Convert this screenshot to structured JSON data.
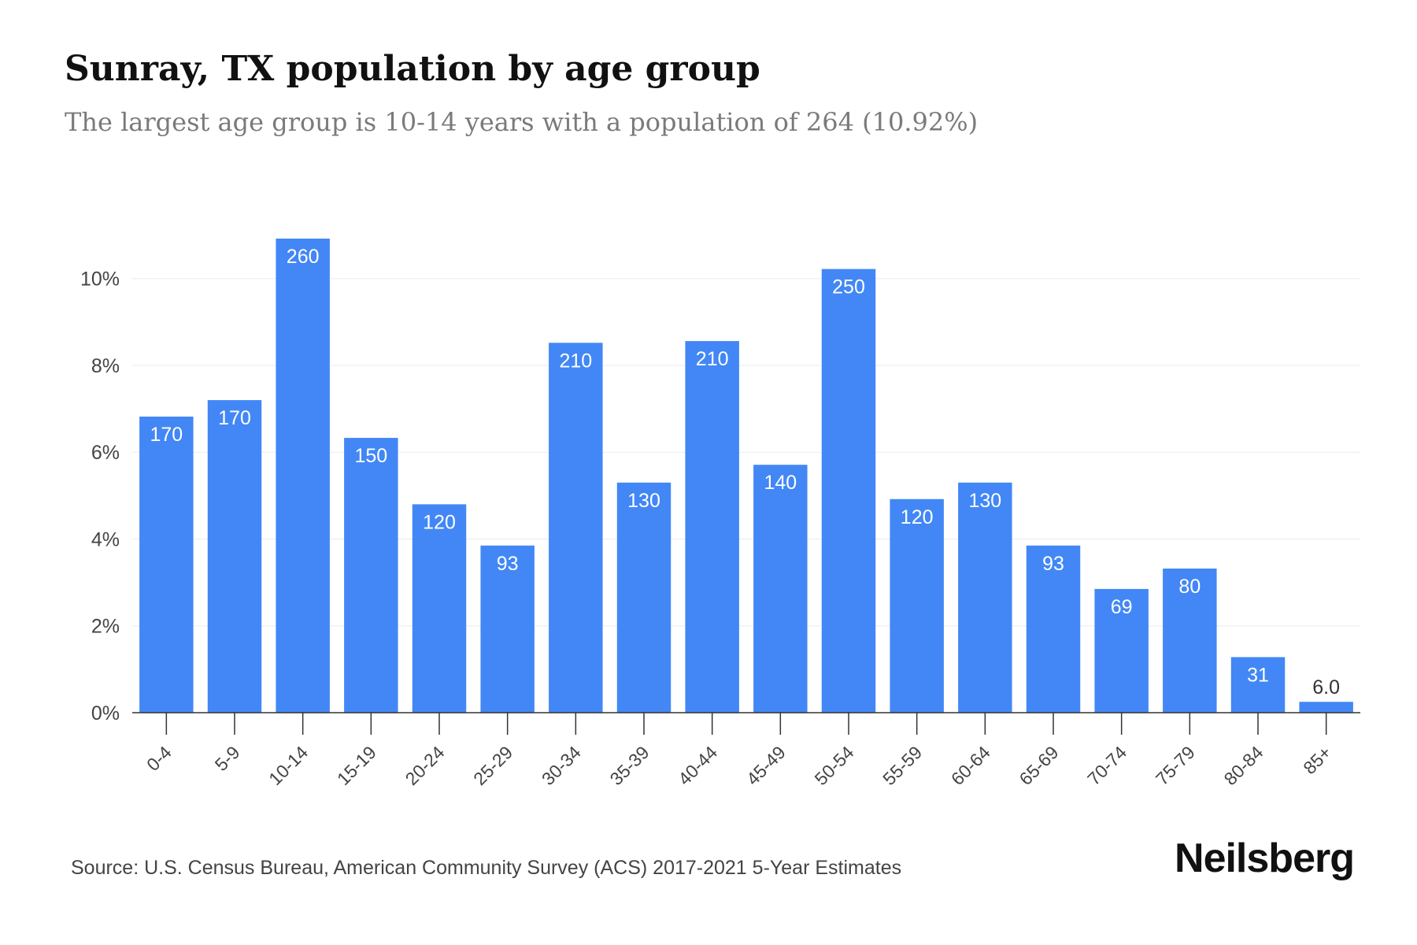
{
  "chart_data": {
    "type": "bar",
    "title": "Sunray, TX population by age group",
    "subtitle": "The largest age group is 10-14 years with a population of 264 (10.92%)",
    "categories": [
      "0-4",
      "5-9",
      "10-14",
      "15-19",
      "20-24",
      "25-29",
      "30-34",
      "35-39",
      "40-44",
      "45-49",
      "50-54",
      "55-59",
      "60-64",
      "65-69",
      "70-74",
      "75-79",
      "80-84",
      "85+"
    ],
    "values": [
      6.82,
      7.2,
      10.92,
      6.33,
      4.8,
      3.85,
      8.52,
      5.3,
      8.56,
      5.71,
      10.22,
      4.92,
      5.3,
      3.85,
      2.85,
      3.32,
      1.28,
      0.25
    ],
    "data_labels": [
      "170",
      "170",
      "260",
      "150",
      "120",
      "93",
      "210",
      "130",
      "210",
      "140",
      "250",
      "120",
      "130",
      "93",
      "69",
      "80",
      "31",
      "6.0"
    ],
    "y_ticks": [
      0,
      2,
      4,
      6,
      8,
      10
    ],
    "y_tick_labels": [
      "0%",
      "2%",
      "4%",
      "6%",
      "8%",
      "10%"
    ],
    "ylim": [
      0,
      10.92
    ],
    "xlabel": "",
    "ylabel": "",
    "grid": true,
    "bar_color": "#4287f5",
    "label_color_inside": "#ffffff",
    "label_color_outside": "#333333"
  },
  "footer": {
    "source": "Source: U.S. Census Bureau, American Community Survey (ACS) 2017-2021 5-Year Estimates",
    "brand": "Neilsberg"
  }
}
